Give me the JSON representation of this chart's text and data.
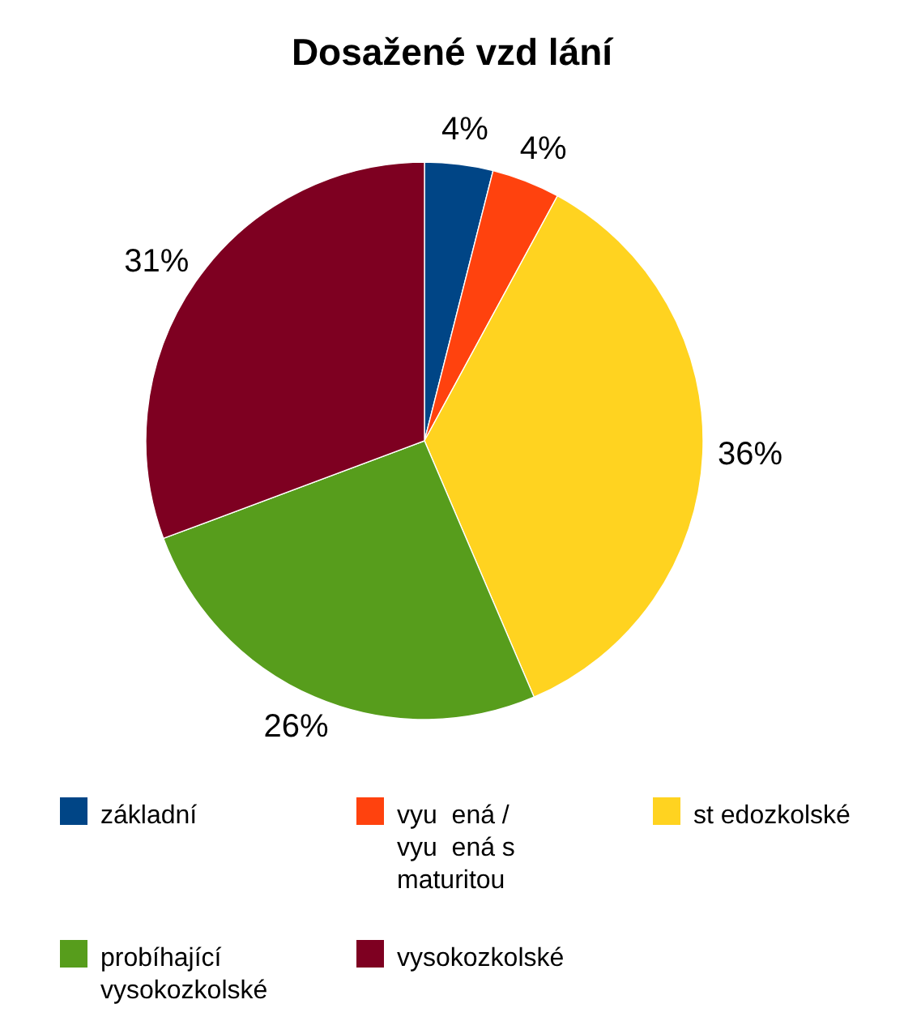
{
  "chart_data": {
    "type": "pie",
    "title": "Dosažené vzd lání",
    "categories": [
      "základní",
      "vyu  ená / vyu  ená s maturitou",
      "st edozkolské",
      "probíhající vysokozkolské",
      "vysokozkolské"
    ],
    "values": [
      4,
      4,
      36,
      26,
      31
    ],
    "value_labels": [
      "4%",
      "4%",
      "36%",
      "26%",
      "31%"
    ],
    "colors": [
      "#004586",
      "#ff420e",
      "#ffd320",
      "#579d1c",
      "#7e0021"
    ],
    "legend": "bottom"
  }
}
